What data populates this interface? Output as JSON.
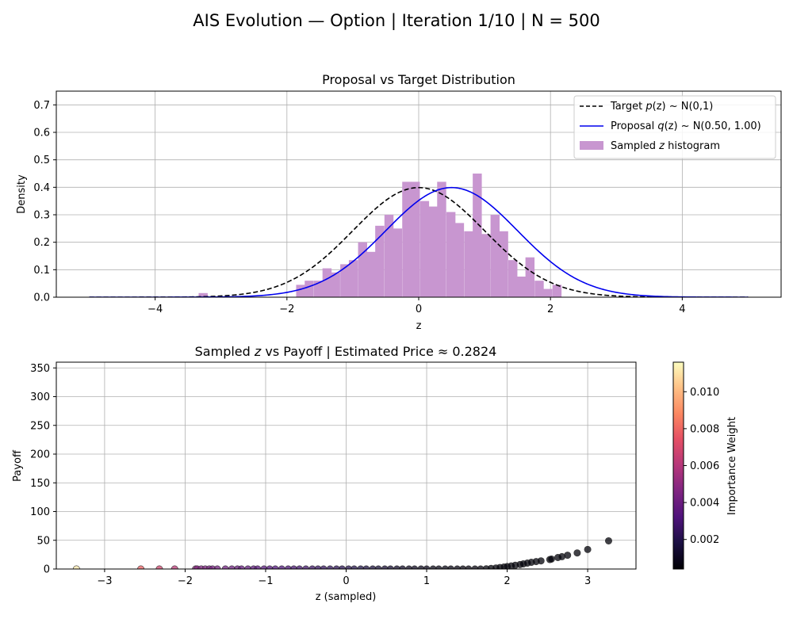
{
  "figure": {
    "suptitle": "AIS Evolution — Option | Iteration 1/10 | N = 500"
  },
  "chart_data": [
    {
      "type": "bar",
      "title": "Proposal vs Target Distribution",
      "xlabel": "z",
      "ylabel": "Density",
      "xlim": [
        -5.5,
        5.5
      ],
      "ylim": [
        0,
        0.75
      ],
      "xticks": [
        -4,
        -2,
        0,
        2,
        4
      ],
      "yticks": [
        0.0,
        0.1,
        0.2,
        0.3,
        0.4,
        0.5,
        0.6,
        0.7
      ],
      "grid": true,
      "legend_position": "top-right",
      "histogram": {
        "name": "Sampled z histogram",
        "color": "#c896d0",
        "bin_width": 0.134,
        "bin_starts": [
          -3.34,
          -1.86,
          -1.73,
          -1.59,
          -1.46,
          -1.33,
          -1.19,
          -1.06,
          -0.92,
          -0.79,
          -0.66,
          -0.52,
          -0.39,
          -0.25,
          -0.12,
          0.02,
          0.15,
          0.28,
          0.42,
          0.55,
          0.69,
          0.82,
          0.95,
          1.09,
          1.22,
          1.36,
          1.49,
          1.62,
          1.76,
          1.89,
          2.03,
          2.16,
          2.29,
          2.43,
          2.56
        ],
        "values": [
          0.015,
          0.045,
          0.06,
          0.06,
          0.105,
          0.09,
          0.12,
          0.135,
          0.2,
          0.165,
          0.26,
          0.3,
          0.25,
          0.42,
          0.42,
          0.35,
          0.33,
          0.42,
          0.31,
          0.27,
          0.24,
          0.45,
          0.23,
          0.3,
          0.24,
          0.135,
          0.075,
          0.145,
          0.06,
          0.03,
          0.045,
          0.0,
          0.0,
          0.0,
          0.0
        ]
      },
      "series": [
        {
          "name": "Target p(z) ~ N(0,1)",
          "kind": "normal-pdf",
          "mu": 0.0,
          "sigma": 1.0,
          "range": [
            -5,
            5
          ],
          "color": "#000000",
          "dash": "dashed"
        },
        {
          "name": "Proposal q(z) ~ N(0.50, 1.00)",
          "kind": "normal-pdf",
          "mu": 0.5,
          "sigma": 1.0,
          "range": [
            -5,
            5
          ],
          "color": "#0000ee",
          "dash": "solid"
        }
      ],
      "legend": {
        "target_prefix": "Target ",
        "target_sym": "p",
        "target_suffix": "(z) ~ N(0,1)",
        "proposal_prefix": "Proposal ",
        "proposal_sym": "q",
        "proposal_suffix": "(z) ~ N(0.50, 1.00)",
        "hist_prefix": "Sampled ",
        "hist_sym": "z",
        "hist_suffix": " histogram"
      }
    },
    {
      "type": "scatter",
      "title_prefix": "Sampled ",
      "title_sym": "z",
      "title_suffix": " vs Payoff | Estimated Price ≈ 0.2824",
      "xlabel": "z (sampled)",
      "ylabel": "Payoff",
      "xlim": [
        -3.6,
        3.6
      ],
      "ylim": [
        0,
        360
      ],
      "xticks": [
        -3,
        -2,
        -1,
        0,
        1,
        2,
        3
      ],
      "yticks": [
        0,
        50,
        100,
        150,
        200,
        250,
        300,
        350
      ],
      "grid": true,
      "points": {
        "z": [
          -3.35,
          -2.55,
          -2.32,
          -2.13,
          -1.87,
          -1.85,
          -1.8,
          -1.75,
          -1.7,
          -1.66,
          -1.6,
          -1.5,
          -1.42,
          -1.35,
          -1.3,
          -1.22,
          -1.15,
          -1.1,
          -1.02,
          -0.95,
          -0.88,
          -0.8,
          -0.72,
          -0.65,
          -0.58,
          -0.5,
          -0.42,
          -0.35,
          -0.28,
          -0.2,
          -0.12,
          -0.05,
          0.03,
          0.1,
          0.18,
          0.25,
          0.33,
          0.4,
          0.48,
          0.55,
          0.63,
          0.7,
          0.78,
          0.85,
          0.93,
          1.0,
          1.08,
          1.15,
          1.23,
          1.3,
          1.38,
          1.45,
          1.52,
          1.6,
          1.67,
          1.74,
          1.8,
          1.86,
          1.91,
          1.96,
          2.0,
          2.05,
          2.1,
          2.16,
          2.2,
          2.25,
          2.3,
          2.36,
          2.42,
          2.53,
          2.55,
          2.63,
          2.68,
          2.75,
          2.87,
          3.0,
          3.26
        ],
        "payoff": [
          0,
          0,
          0,
          0,
          0,
          0,
          0,
          0,
          0,
          0,
          0,
          0,
          0,
          0,
          0,
          0,
          0,
          0,
          0,
          0,
          0,
          0,
          0,
          0,
          0,
          0,
          0,
          0,
          0,
          0,
          0,
          0,
          0,
          0,
          0,
          0,
          0,
          0,
          0,
          0,
          0,
          0,
          0,
          0,
          0,
          0,
          0,
          0,
          0,
          0,
          0,
          0,
          0,
          0,
          0,
          0.3,
          1.0,
          1.8,
          2.6,
          3.5,
          4.3,
          5.3,
          6.5,
          7.8,
          8.9,
          10.3,
          11.7,
          13.0,
          14.2,
          16.5,
          17.3,
          20.0,
          21.5,
          24.0,
          28.0,
          34.0,
          49.0
        ],
        "weight": [
          0.0111,
          0.0078,
          0.0068,
          0.0062,
          0.0048,
          0.0047,
          0.0046,
          0.0045,
          0.0044,
          0.0043,
          0.0042,
          0.0041,
          0.004,
          0.0039,
          0.0038,
          0.0037,
          0.0036,
          0.0035,
          0.0034,
          0.0033,
          0.0032,
          0.0031,
          0.003,
          0.0029,
          0.0028,
          0.0027,
          0.0026,
          0.0025,
          0.0024,
          0.0023,
          0.0022,
          0.0021,
          0.002,
          0.0019,
          0.0018,
          0.0017,
          0.0016,
          0.0015,
          0.0014,
          0.0013,
          0.0012,
          0.0011,
          0.001,
          0.001,
          0.0009,
          0.0009,
          0.0008,
          0.0008,
          0.0007,
          0.0007,
          0.0007,
          0.0006,
          0.0006,
          0.0006,
          0.0006,
          0.0005,
          0.0005,
          0.0005,
          0.0005,
          0.0005,
          0.0005,
          0.0005,
          0.0005,
          0.0005,
          0.0005,
          0.0005,
          0.0005,
          0.0005,
          0.0005,
          0.0005,
          0.0005,
          0.0005,
          0.0005,
          0.0005,
          0.0005,
          0.0005,
          0.0005
        ]
      },
      "colorbar": {
        "label": "Importance Weight",
        "colormap": "magma",
        "range": [
          0.0004,
          0.0116
        ],
        "ticks": [
          0.002,
          0.004,
          0.006,
          0.008,
          0.01
        ],
        "tick_labels": [
          "0.002",
          "0.004",
          "0.006",
          "0.008",
          "0.010"
        ]
      }
    }
  ]
}
